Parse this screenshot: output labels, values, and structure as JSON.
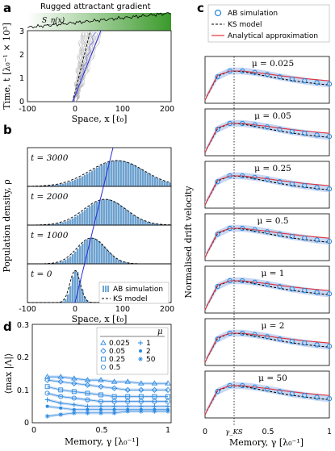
{
  "panels": {
    "a": {
      "letter": "a",
      "title": "Rugged attractant gradient",
      "signal_label": "S_η(x)",
      "ylabel": "Time, t [λ₀⁻¹ × 10³]",
      "xlabel": "Space, x [ℓ₀]",
      "xticks": [
        "-100",
        "0",
        "100",
        "200"
      ],
      "yticks": [
        "0",
        "1",
        "2",
        "3"
      ]
    },
    "b": {
      "letter": "b",
      "ylabel": "Population density, ρ",
      "xlabel": "Space, x [ℓ₀]",
      "xticks": [
        "-100",
        "0",
        "100",
        "200"
      ],
      "times": [
        "t = 3000",
        "t = 2000",
        "t = 1000",
        "t = 0"
      ],
      "legend": [
        "AB simulation",
        "KS model"
      ]
    },
    "c": {
      "letter": "c",
      "ylabel": "Normalised drift velocity",
      "xlabel": "Memory, γ [λ₀⁻¹]",
      "xticks": [
        "0",
        "0.5",
        "1"
      ],
      "gamma_ks_label": "γ_KS",
      "legend": [
        "AB simulation",
        "KS model",
        "Analytical approximation"
      ],
      "mu_labels": [
        "μ = 0.025",
        "μ = 0.05",
        "μ = 0.25",
        "μ = 0.5",
        "μ = 1",
        "μ = 2",
        "μ = 50"
      ]
    },
    "d": {
      "letter": "d",
      "ylabel": "⟨max |Λ|⟩",
      "xlabel": "Memory, γ [λ₀⁻¹]",
      "xticks": [
        "0",
        "0.5",
        "1"
      ],
      "yticks": [
        "0",
        "0.1",
        "0.2",
        "0.3"
      ],
      "legend_title": "μ",
      "legend_items": [
        "0.025",
        "0.05",
        "0.25",
        "0.5",
        "1",
        "2",
        "50"
      ]
    }
  },
  "chart_data": [
    {
      "type": "line",
      "panel": "c",
      "note": "seven sub-plots, one per μ value; curves are the same normalised shape",
      "x": [
        0,
        0.1,
        0.2,
        0.3,
        0.4,
        0.5,
        0.6,
        0.7,
        0.8,
        0.9,
        1.0
      ],
      "series": [
        {
          "name": "AB simulation",
          "values": [
            0.0,
            0.8,
            1.0,
            1.0,
            0.95,
            0.88,
            0.8,
            0.72,
            0.66,
            0.6,
            0.55
          ]
        },
        {
          "name": "KS model",
          "values": [
            0.0,
            0.82,
            1.0,
            0.98,
            0.9,
            0.82,
            0.74,
            0.67,
            0.61,
            0.56,
            0.52
          ]
        },
        {
          "name": "Analytical approximation",
          "values": [
            0.0,
            0.85,
            1.0,
            1.0,
            0.95,
            0.9,
            0.84,
            0.79,
            0.74,
            0.7,
            0.66
          ]
        }
      ],
      "gamma_ks": 0.22
    },
    {
      "type": "scatter",
      "panel": "d",
      "x": [
        0.1,
        0.2,
        0.3,
        0.4,
        0.5,
        0.6,
        0.7,
        0.8,
        0.9,
        1.0
      ],
      "series": [
        {
          "name": "0.025",
          "values": [
            0.14,
            0.14,
            0.135,
            0.13,
            0.13,
            0.125,
            0.125,
            0.12,
            0.12,
            0.12
          ]
        },
        {
          "name": "0.05",
          "values": [
            0.13,
            0.125,
            0.12,
            0.115,
            0.11,
            0.105,
            0.1,
            0.1,
            0.1,
            0.1
          ]
        },
        {
          "name": "0.25",
          "values": [
            0.11,
            0.1,
            0.095,
            0.09,
            0.085,
            0.08,
            0.08,
            0.08,
            0.08,
            0.08
          ]
        },
        {
          "name": "0.5",
          "values": [
            0.09,
            0.08,
            0.075,
            0.07,
            0.065,
            0.065,
            0.065,
            0.065,
            0.065,
            0.065
          ]
        },
        {
          "name": "1",
          "values": [
            0.07,
            0.06,
            0.055,
            0.05,
            0.05,
            0.05,
            0.05,
            0.05,
            0.05,
            0.05
          ]
        },
        {
          "name": "2",
          "values": [
            0.05,
            0.045,
            0.04,
            0.04,
            0.04,
            0.04,
            0.04,
            0.04,
            0.04,
            0.04
          ]
        },
        {
          "name": "50",
          "values": [
            0.02,
            0.025,
            0.03,
            0.03,
            0.03,
            0.03,
            0.035,
            0.035,
            0.035,
            0.035
          ]
        }
      ],
      "ylim": [
        0,
        0.3
      ]
    }
  ]
}
